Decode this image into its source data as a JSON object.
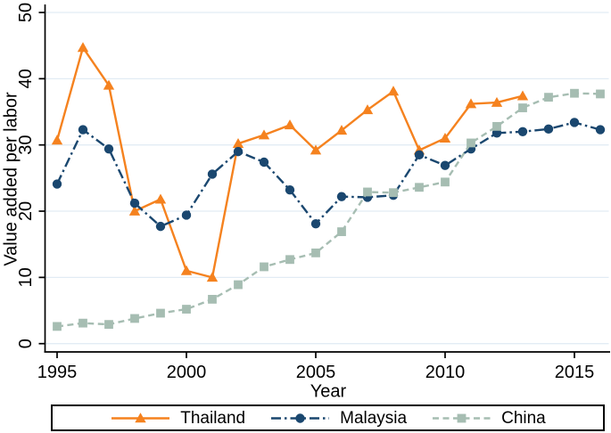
{
  "figure": {
    "type": "stata-style line chart",
    "background": "#ffffff"
  },
  "chart_data": {
    "type": "line",
    "title": "",
    "xlabel": "Year",
    "ylabel": "Value added per labor",
    "xlim": [
      1995,
      2016
    ],
    "ylim": [
      0,
      50
    ],
    "xticks": [
      1995,
      2000,
      2005,
      2010,
      2015
    ],
    "yticks": [
      0,
      10,
      20,
      30,
      40,
      50
    ],
    "grid": "horizontal",
    "grid_color": "#e2ecf4",
    "axis_color": "#000000",
    "legend_position": "bottom",
    "x": [
      1995,
      1996,
      1997,
      1998,
      1999,
      2000,
      2001,
      2002,
      2003,
      2004,
      2005,
      2006,
      2007,
      2008,
      2009,
      2010,
      2011,
      2012,
      2013,
      2014,
      2015,
      2016
    ],
    "series": [
      {
        "name": "Thailand",
        "color": "#f5821f",
        "line_style": "solid",
        "marker": "triangle",
        "values": [
          30.7,
          44.7,
          39.0,
          20.0,
          21.8,
          11.0,
          10.0,
          30.2,
          31.5,
          33.0,
          29.2,
          32.2,
          35.3,
          38.1,
          29.2,
          31.0,
          36.2,
          36.4,
          37.4,
          null,
          null,
          null
        ]
      },
      {
        "name": "Malaysia",
        "color": "#1a476f",
        "line_style": "dash-dot",
        "marker": "circle",
        "values": [
          24.1,
          32.3,
          29.4,
          21.2,
          17.7,
          19.4,
          25.6,
          29.0,
          27.4,
          23.2,
          18.1,
          22.2,
          22.1,
          22.4,
          28.5,
          26.9,
          29.4,
          31.8,
          32.0,
          32.4,
          33.4,
          32.3
        ]
      },
      {
        "name": "China",
        "color": "#a6bdb2",
        "line_style": "dashed",
        "marker": "square",
        "values": [
          2.6,
          3.1,
          2.9,
          3.8,
          4.6,
          5.2,
          6.7,
          8.9,
          11.6,
          12.7,
          13.7,
          16.9,
          22.9,
          22.8,
          23.6,
          24.4,
          30.3,
          32.8,
          35.6,
          37.2,
          37.8,
          37.7
        ]
      }
    ]
  }
}
